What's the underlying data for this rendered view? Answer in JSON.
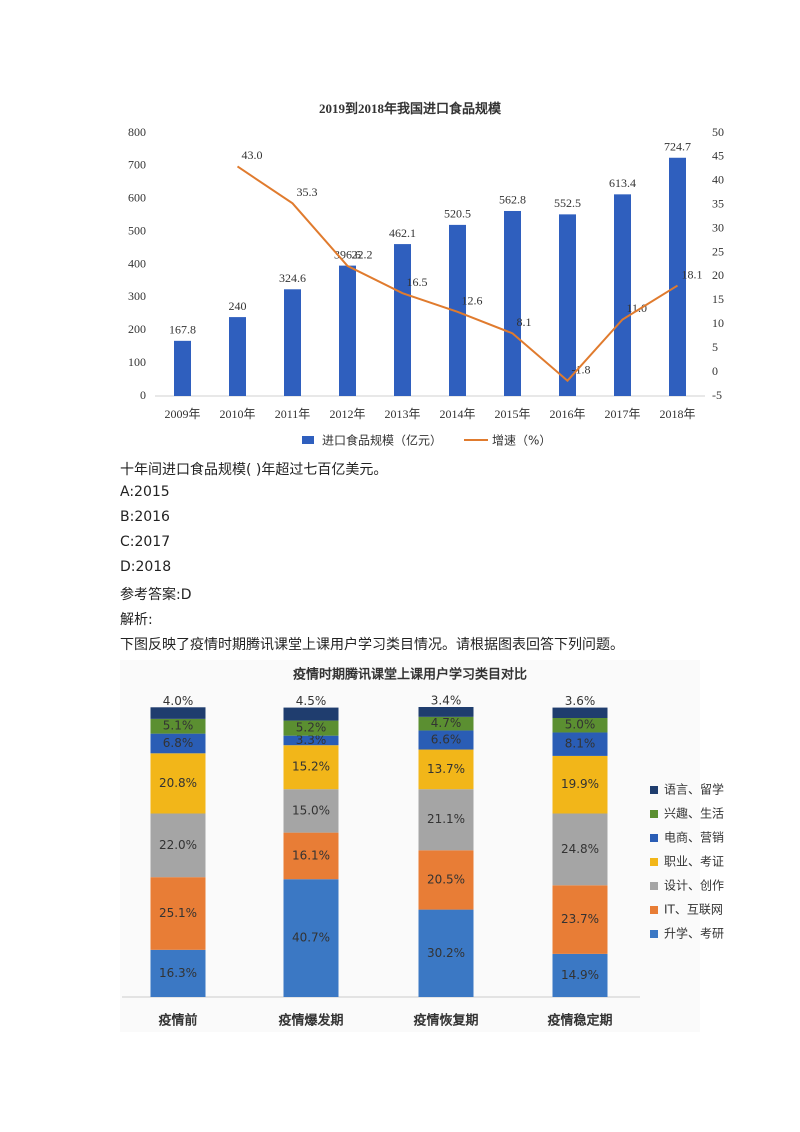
{
  "chart_data": [
    {
      "type": "bar",
      "title": "2019到2018年我国进口食品规模",
      "categories": [
        "2009年",
        "2010年",
        "2011年",
        "2012年",
        "2013年",
        "2014年",
        "2015年",
        "2016年",
        "2017年",
        "2018年"
      ],
      "series": [
        {
          "name": "进口食品规模（亿元）",
          "type": "bar",
          "color": "#2f5fbe",
          "values": [
            167.8,
            240,
            324.6,
            396.6,
            462.1,
            520.5,
            562.8,
            552.5,
            613.4,
            724.7
          ]
        },
        {
          "name": "增速（%）",
          "type": "line",
          "axis": "y2",
          "color": "#e07b2e",
          "values": [
            null,
            43.0,
            35.3,
            22.2,
            16.5,
            12.6,
            8.1,
            -1.8,
            11.0,
            18.1
          ],
          "value_labels": [
            null,
            "43.0",
            "35.3",
            "22.2",
            "16.5",
            "12.6",
            "8.1",
            "-1.8",
            "11.0",
            "18.1"
          ]
        }
      ],
      "ylim": [
        0,
        800
      ],
      "yticks": [
        0,
        100,
        200,
        300,
        400,
        500,
        600,
        700,
        800
      ],
      "y2lim": [
        -5,
        50
      ],
      "y2ticks": [
        -5,
        0,
        5,
        10,
        15,
        20,
        25,
        30,
        35,
        40,
        45,
        50
      ],
      "legend": "bottom"
    },
    {
      "type": "stacked_bar",
      "title": "疫情时期腾讯课堂上课用户学习类目对比",
      "categories": [
        "疫情前",
        "疫情爆发期",
        "疫情恢复期",
        "疫情稳定期"
      ],
      "series": [
        {
          "name": "升学、考研",
          "color": "#3b78c4",
          "values": [
            16.3,
            40.7,
            30.2,
            14.9
          ],
          "value_labels": [
            "16.3%",
            "40.7%",
            "30.2%",
            "14.9%"
          ]
        },
        {
          "name": "IT、互联网",
          "color": "#e87d36",
          "values": [
            25.1,
            16.1,
            20.5,
            23.7
          ],
          "value_labels": [
            "25.1%",
            "16.1%",
            "20.5%",
            "23.7%"
          ]
        },
        {
          "name": "设计、创作",
          "color": "#a5a5a5",
          "values": [
            22.0,
            15.0,
            21.1,
            24.8
          ],
          "value_labels": [
            "22.0%",
            "15.0%",
            "21.1%",
            "24.8%"
          ]
        },
        {
          "name": "职业、考证",
          "color": "#f2b619",
          "values": [
            20.8,
            15.2,
            13.7,
            19.9
          ],
          "value_labels": [
            "20.8%",
            "15.2%",
            "13.7%",
            "19.9%"
          ]
        },
        {
          "name": "电商、营销",
          "color": "#2a5db5",
          "values": [
            6.8,
            3.3,
            6.6,
            8.1
          ],
          "value_labels": [
            "6.8%",
            "3.3%",
            "6.6%",
            "8.1%"
          ]
        },
        {
          "name": "兴趣、生活",
          "color": "#5b8f31",
          "values": [
            5.1,
            5.2,
            4.7,
            5.0
          ],
          "value_labels": [
            "5.1%",
            "5.2%",
            "4.7%",
            "5.0%"
          ]
        },
        {
          "name": "语言、留学",
          "color": "#1f3d6e",
          "values": [
            4.0,
            4.5,
            3.4,
            3.6
          ],
          "value_labels": [
            "4.0%",
            "4.5%",
            "3.4%",
            "3.6%"
          ]
        }
      ],
      "legend": "right"
    }
  ],
  "document": {
    "question": "十年间进口食品规模( )年超过七百亿美元。",
    "options": [
      "A:2015",
      "B:2016",
      "C:2017",
      "D:2018"
    ],
    "answer": "参考答案:D",
    "analysis": "解析:",
    "intro": "下图反映了疫情时期腾讯课堂上课用户学习类目情况。请根据图表回答下列问题。"
  }
}
